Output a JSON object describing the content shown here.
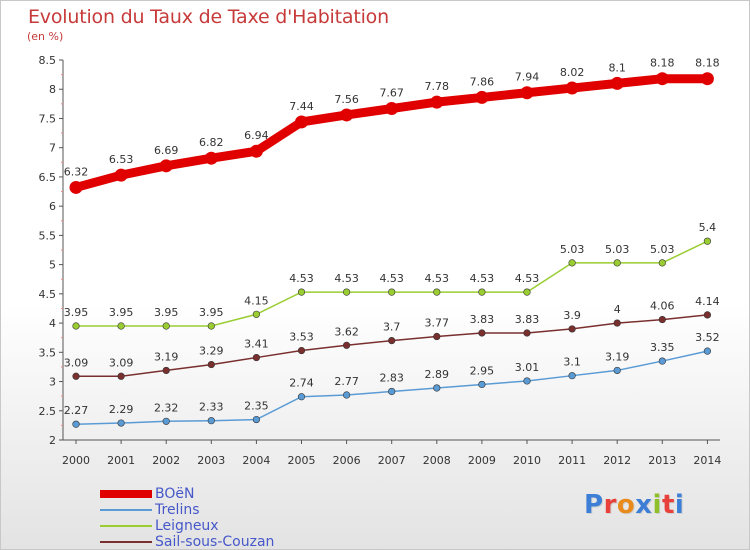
{
  "title": "Evolution du Taux de Taxe d'Habitation",
  "subtitle": "(en %)",
  "logo_text": "Proxiti",
  "logo_colors": [
    "#3d7fd6",
    "#e8403a",
    "#e88a1c",
    "#3d7fd6",
    "#8fbf2a",
    "#e8403a",
    "#3d7fd6"
  ],
  "chart_data": {
    "type": "line",
    "title": "Evolution du Taux de Taxe d'Habitation",
    "ylabel": "(en %)",
    "xlabel": "",
    "x": [
      "2000",
      "2001",
      "2002",
      "2003",
      "2004",
      "2005",
      "2006",
      "2007",
      "2008",
      "2009",
      "2010",
      "2011",
      "2012",
      "2013",
      "2014"
    ],
    "ylim": [
      2,
      8.5
    ],
    "yticks": [
      "2",
      "2.5",
      "3",
      "3.5",
      "4",
      "4.5",
      "5",
      "5.5",
      "6",
      "6.5",
      "7",
      "7.5",
      "8",
      "8.5"
    ],
    "grid": false,
    "legend_position": "bottom-left",
    "series": [
      {
        "name": "BOëN",
        "color": "#e00000",
        "thick": true,
        "values": [
          6.32,
          6.53,
          6.69,
          6.82,
          6.94,
          7.44,
          7.56,
          7.67,
          7.78,
          7.86,
          7.94,
          8.02,
          8.1,
          8.18,
          8.18
        ],
        "labels": [
          "6.32",
          "6.53",
          "6.69",
          "6.82",
          "6.94",
          "7.44",
          "7.56",
          "7.67",
          "7.78",
          "7.86",
          "7.94",
          "8.02",
          "8.1",
          "8.18",
          "8.18"
        ]
      },
      {
        "name": "Trelins",
        "color": "#5a9bd5",
        "thick": false,
        "values": [
          2.27,
          2.29,
          2.32,
          2.33,
          2.35,
          2.74,
          2.77,
          2.83,
          2.89,
          2.95,
          3.01,
          3.1,
          3.19,
          3.35,
          3.52
        ],
        "labels": [
          "2.27",
          "2.29",
          "2.32",
          "2.33",
          "2.35",
          "2.74",
          "2.77",
          "2.83",
          "2.89",
          "2.95",
          "3.01",
          "3.1",
          "3.19",
          "3.35",
          "3.52"
        ]
      },
      {
        "name": "Leigneux",
        "color": "#9acd32",
        "thick": false,
        "values": [
          3.95,
          3.95,
          3.95,
          3.95,
          4.15,
          4.53,
          4.53,
          4.53,
          4.53,
          4.53,
          4.53,
          5.03,
          5.03,
          5.03,
          5.4
        ],
        "labels": [
          "3.95",
          "3.95",
          "3.95",
          "3.95",
          "4.15",
          "4.53",
          "4.53",
          "4.53",
          "4.53",
          "4.53",
          "4.53",
          "5.03",
          "5.03",
          "5.03",
          "5.4"
        ]
      },
      {
        "name": "Sail-sous-Couzan",
        "color": "#7a2f2f",
        "thick": false,
        "values": [
          3.09,
          3.09,
          3.19,
          3.29,
          3.41,
          3.53,
          3.62,
          3.7,
          3.77,
          3.83,
          3.83,
          3.9,
          4.0,
          4.06,
          4.14
        ],
        "labels": [
          "3.09",
          "3.09",
          "3.19",
          "3.29",
          "3.41",
          "3.53",
          "3.62",
          "3.7",
          "3.77",
          "3.83",
          "3.83",
          "3.9",
          "4",
          "4.06",
          "4.14"
        ]
      }
    ]
  }
}
